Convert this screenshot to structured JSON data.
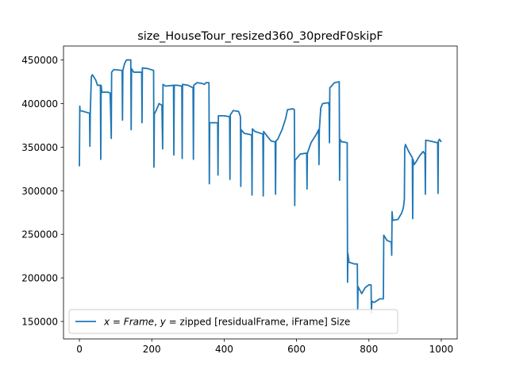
{
  "chart_data": {
    "type": "line",
    "title": "size_HouseTour_resized360_30predF0skipF",
    "xlabel": "",
    "ylabel": "",
    "xlim": [
      -44,
      1044
    ],
    "ylim": [
      130000,
      466000
    ],
    "xticks": [
      0,
      200,
      400,
      600,
      800,
      1000
    ],
    "xtick_labels": [
      "0",
      "200",
      "400",
      "600",
      "800",
      "1000"
    ],
    "yticks": [
      150000,
      200000,
      250000,
      300000,
      350000,
      400000,
      450000
    ],
    "ytick_labels": [
      "150000",
      "200000",
      "250000",
      "300000",
      "350000",
      "400000",
      "450000"
    ],
    "grid": false,
    "legend": {
      "placement": "lower-left"
    },
    "series": [
      {
        "name": "x = Frame, y =  zipped [residualFrame, iFrame] Size",
        "color": "#1f77b4",
        "points": [
          [
            0,
            328000
          ],
          [
            1,
            397000
          ],
          [
            2,
            392000
          ],
          [
            28,
            389000
          ],
          [
            29,
            351000
          ],
          [
            30,
            389000
          ],
          [
            33,
            431000
          ],
          [
            36,
            433000
          ],
          [
            45,
            427000
          ],
          [
            50,
            421000
          ],
          [
            58,
            421000
          ],
          [
            59,
            336000
          ],
          [
            60,
            421000
          ],
          [
            62,
            413000
          ],
          [
            80,
            413000
          ],
          [
            85,
            412000
          ],
          [
            88,
            360000
          ],
          [
            89,
            436000
          ],
          [
            95,
            439000
          ],
          [
            118,
            438000
          ],
          [
            119,
            381000
          ],
          [
            120,
            438000
          ],
          [
            125,
            446000
          ],
          [
            130,
            450000
          ],
          [
            142,
            450000
          ],
          [
            143,
            370000
          ],
          [
            144,
            440000
          ],
          [
            150,
            436000
          ],
          [
            172,
            436000
          ],
          [
            173,
            378000
          ],
          [
            174,
            441000
          ],
          [
            190,
            440000
          ],
          [
            205,
            438000
          ],
          [
            206,
            327000
          ],
          [
            207,
            388000
          ],
          [
            212,
            392000
          ],
          [
            220,
            400000
          ],
          [
            228,
            398000
          ],
          [
            230,
            348000
          ],
          [
            231,
            422000
          ],
          [
            238,
            420000
          ],
          [
            260,
            421000
          ],
          [
            261,
            341000
          ],
          [
            262,
            421000
          ],
          [
            270,
            421000
          ],
          [
            283,
            420000
          ],
          [
            284,
            337000
          ],
          [
            285,
            422000
          ],
          [
            300,
            421000
          ],
          [
            314,
            418000
          ],
          [
            315,
            336000
          ],
          [
            316,
            421000
          ],
          [
            325,
            424000
          ],
          [
            340,
            423000
          ],
          [
            345,
            422000
          ],
          [
            350,
            424000
          ],
          [
            358,
            424000
          ],
          [
            359,
            308000
          ],
          [
            360,
            378000
          ],
          [
            375,
            378000
          ],
          [
            382,
            378000
          ],
          [
            383,
            318000
          ],
          [
            384,
            386000
          ],
          [
            400,
            386000
          ],
          [
            415,
            385000
          ],
          [
            416,
            313000
          ],
          [
            417,
            387000
          ],
          [
            425,
            392000
          ],
          [
            440,
            391000
          ],
          [
            445,
            385000
          ],
          [
            446,
            305000
          ],
          [
            447,
            370000
          ],
          [
            455,
            366000
          ],
          [
            465,
            365000
          ],
          [
            476,
            364000
          ],
          [
            477,
            295000
          ],
          [
            478,
            371000
          ],
          [
            485,
            368000
          ],
          [
            500,
            366000
          ],
          [
            507,
            365000
          ],
          [
            508,
            294000
          ],
          [
            509,
            368000
          ],
          [
            520,
            362000
          ],
          [
            530,
            357000
          ],
          [
            541,
            356000
          ],
          [
            542,
            296000
          ],
          [
            543,
            357000
          ],
          [
            548,
            359000
          ],
          [
            560,
            370000
          ],
          [
            570,
            383000
          ],
          [
            575,
            393000
          ],
          [
            590,
            394000
          ],
          [
            594,
            393000
          ],
          [
            595,
            283000
          ],
          [
            596,
            335000
          ],
          [
            610,
            342000
          ],
          [
            625,
            343000
          ],
          [
            628,
            343000
          ],
          [
            629,
            302000
          ],
          [
            630,
            343000
          ],
          [
            640,
            355000
          ],
          [
            655,
            365000
          ],
          [
            661,
            370000
          ],
          [
            662,
            330000
          ],
          [
            663,
            370000
          ],
          [
            667,
            395000
          ],
          [
            672,
            400000
          ],
          [
            688,
            401000
          ],
          [
            690,
            398000
          ],
          [
            691,
            355000
          ],
          [
            692,
            418000
          ],
          [
            705,
            424000
          ],
          [
            718,
            425000
          ],
          [
            719,
            312000
          ],
          [
            720,
            359000
          ],
          [
            725,
            356000
          ],
          [
            730,
            356000
          ],
          [
            740,
            355000
          ],
          [
            741,
            195000
          ],
          [
            742,
            228000
          ],
          [
            745,
            218000
          ],
          [
            760,
            216000
          ],
          [
            768,
            216000
          ],
          [
            769,
            163000
          ],
          [
            770,
            190000
          ],
          [
            780,
            182000
          ],
          [
            790,
            189000
          ],
          [
            800,
            192000
          ],
          [
            806,
            192000
          ],
          [
            807,
            160000
          ],
          [
            808,
            173000
          ],
          [
            815,
            172000
          ],
          [
            830,
            176000
          ],
          [
            840,
            176000
          ],
          [
            841,
            249000
          ],
          [
            850,
            243000
          ],
          [
            862,
            241000
          ],
          [
            863,
            226000
          ],
          [
            864,
            276000
          ],
          [
            866,
            266000
          ],
          [
            880,
            267000
          ],
          [
            890,
            274000
          ],
          [
            895,
            280000
          ],
          [
            898,
            290000
          ],
          [
            899,
            349000
          ],
          [
            901,
            353000
          ],
          [
            910,
            345000
          ],
          [
            920,
            338000
          ],
          [
            921,
            268000
          ],
          [
            922,
            336000
          ],
          [
            925,
            330000
          ],
          [
            930,
            333000
          ],
          [
            940,
            340000
          ],
          [
            950,
            345000
          ],
          [
            955,
            342000
          ],
          [
            956,
            296000
          ],
          [
            957,
            358000
          ],
          [
            970,
            357000
          ],
          [
            990,
            355000
          ],
          [
            991,
            297000
          ],
          [
            992,
            357000
          ],
          [
            995,
            359000
          ],
          [
            1000,
            356000
          ]
        ]
      }
    ]
  }
}
